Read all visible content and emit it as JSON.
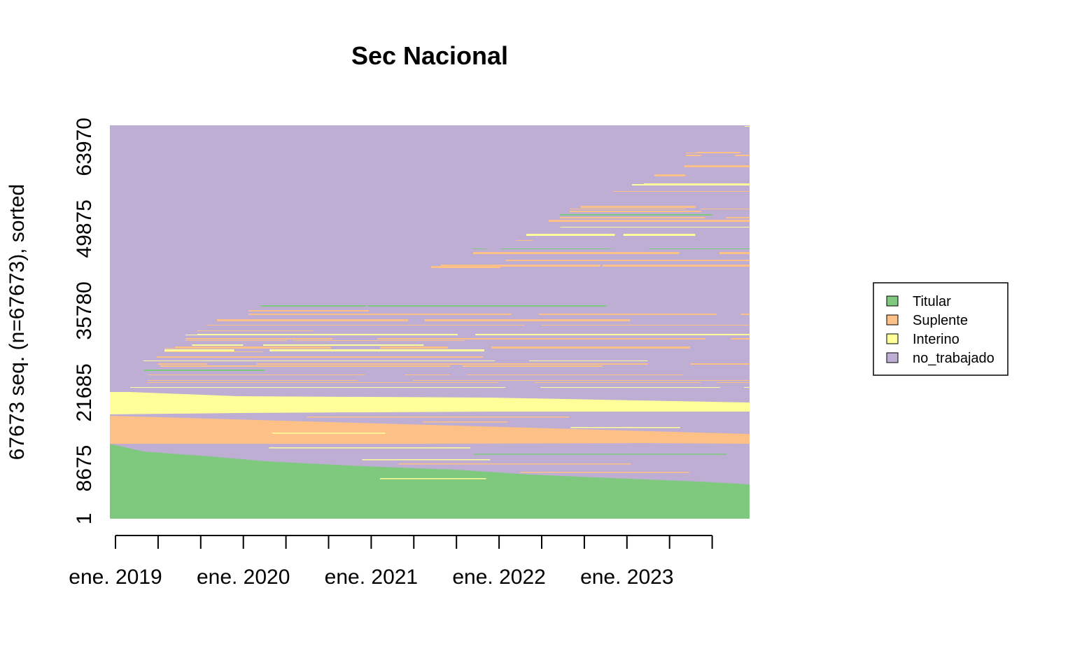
{
  "chart_data": {
    "type": "area",
    "title": "Sec Nacional",
    "ylabel": "67673 seq. (n=67673), sorted",
    "xlabel": "",
    "y_ticks": [
      "1",
      "8675",
      "21685",
      "35780",
      "49875",
      "63970"
    ],
    "y_tick_values": [
      1,
      8675,
      21685,
      35780,
      49875,
      63970
    ],
    "ylim": [
      1,
      67673
    ],
    "x_tick_labels": [
      "ene. 2019",
      "ene. 2020",
      "ene. 2021",
      "ene. 2022",
      "ene. 2023"
    ],
    "x_tick_count": 15,
    "legend_position": "right",
    "series": [
      {
        "name": "Titular",
        "color": "#7FC97F"
      },
      {
        "name": "Suplente",
        "color": "#FDC086"
      },
      {
        "name": "Interino",
        "color": "#FFFF99"
      },
      {
        "name": "no_trabajado",
        "color": "#BEAED4"
      }
    ]
  }
}
